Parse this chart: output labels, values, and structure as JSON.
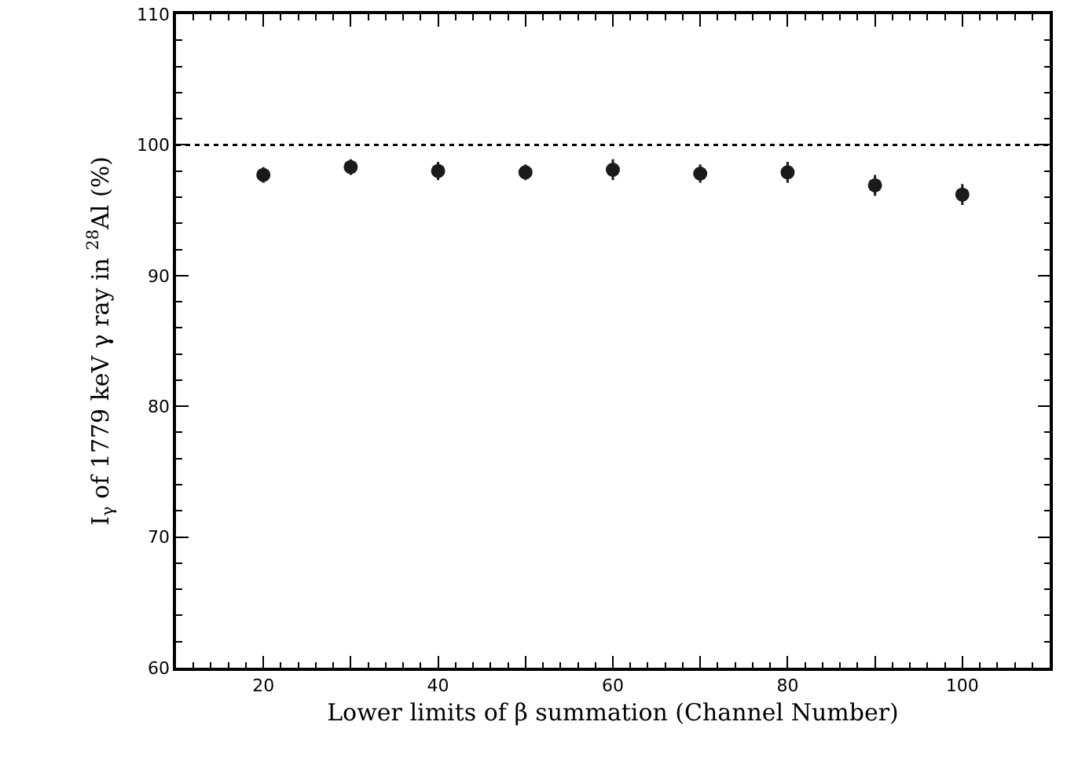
{
  "chart_data": {
    "type": "scatter",
    "xlabel": "Lower limits of β summation (Channel Number)",
    "ylabel": "I$_{γ}$ of 1779 keV γ ray in $^{28}$Al (%)",
    "x": [
      20,
      30,
      40,
      50,
      60,
      70,
      80,
      90,
      100
    ],
    "values": [
      97.7,
      98.3,
      98.0,
      97.9,
      98.1,
      97.8,
      97.9,
      96.9,
      96.2
    ],
    "errors": [
      0.6,
      0.6,
      0.7,
      0.6,
      0.8,
      0.7,
      0.8,
      0.8,
      0.8
    ],
    "color": "#1a1a1a",
    "marker": "circle",
    "xlim": [
      10,
      110
    ],
    "xticks": [
      20,
      {
        "value": 30,
        "label": null
      },
      40,
      {
        "value": 50,
        "label": null
      },
      60,
      {
        "value": 70,
        "label": null
      },
      80,
      {
        "value": 90,
        "label": null
      },
      100
    ],
    "ylim": [
      60,
      110
    ],
    "yticks": [
      60,
      70,
      80,
      90,
      100,
      110
    ],
    "ref_lines": [
      {
        "axis": "y",
        "value": 100,
        "line_style": "dotted",
        "color": "#000000"
      }
    ],
    "grid": false
  }
}
